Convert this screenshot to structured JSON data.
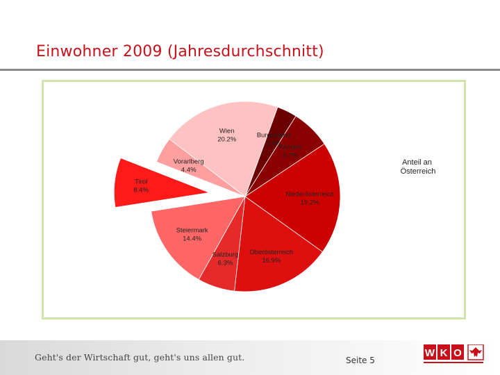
{
  "slide": {
    "title": "Einwohner 2009 (Jahresdurchschnitt)",
    "slogan": "Geht's der Wirtschaft gut, geht's uns allen gut.",
    "page_label": "Seite 5",
    "logo_text": "WKO",
    "accent_color": "#c8101a"
  },
  "chart_data": {
    "type": "pie",
    "legend": "Anteil an Österreich",
    "legend_placement": "right",
    "slices": [
      {
        "name": "Burgenland",
        "value": 3.4,
        "label": "3.4%",
        "color": "#6b0000",
        "exploded": false
      },
      {
        "name": "Kärnten",
        "value": 6.7,
        "label": "6.7%",
        "color": "#8b0000",
        "exploded": false
      },
      {
        "name": "Niederösterreich",
        "value": 19.2,
        "label": "19.2%",
        "color": "#cc0000",
        "exploded": false
      },
      {
        "name": "Oberösterreich",
        "value": 16.9,
        "label": "16.9%",
        "color": "#dd0f0f",
        "exploded": false
      },
      {
        "name": "Salzburg",
        "value": 6.3,
        "label": "6.3%",
        "color": "#e62a2a",
        "exploded": false
      },
      {
        "name": "Steiermark",
        "value": 14.4,
        "label": "14.4%",
        "color": "#ff6666",
        "exploded": false
      },
      {
        "name": "Tirol",
        "value": 8.4,
        "label": "8.4%",
        "color": "#ff1a1a",
        "exploded": true
      },
      {
        "name": "Vorarlberg",
        "value": 4.4,
        "label": "4.4%",
        "color": "#ff9f9f",
        "exploded": false
      },
      {
        "name": "Wien",
        "value": 20.2,
        "label": "20.2%",
        "color": "#ffc2c2",
        "exploded": false
      }
    ]
  }
}
